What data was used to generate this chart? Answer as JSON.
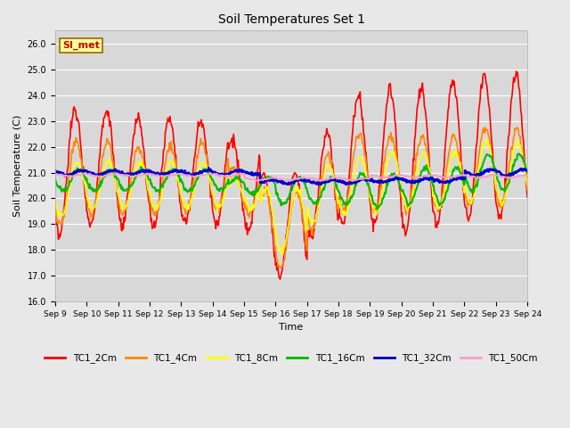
{
  "title": "Soil Temperatures Set 1",
  "xlabel": "Time",
  "ylabel": "Soil Temperature (C)",
  "ylim": [
    16.0,
    26.5
  ],
  "yticks": [
    16.0,
    17.0,
    18.0,
    19.0,
    20.0,
    21.0,
    22.0,
    23.0,
    24.0,
    25.0,
    26.0
  ],
  "fig_bg": "#e8e8e8",
  "plot_bg": "#d8d8d8",
  "grid_color": "#ffffff",
  "annotation_text": "SI_met",
  "annotation_bg": "#ffff99",
  "annotation_border": "#996600",
  "annotation_text_color": "#cc0000",
  "series_colors": {
    "TC1_2Cm": "#ff0000",
    "TC1_4Cm": "#ff8800",
    "TC1_8Cm": "#ffff00",
    "TC1_16Cm": "#00bb00",
    "TC1_32Cm": "#0000cc",
    "TC1_50Cm": "#ff99cc"
  },
  "series_lw": {
    "TC1_2Cm": 1.2,
    "TC1_4Cm": 1.2,
    "TC1_8Cm": 1.2,
    "TC1_16Cm": 1.5,
    "TC1_32Cm": 2.0,
    "TC1_50Cm": 1.2
  },
  "x_tick_labels": [
    "Sep 9",
    "Sep 10",
    "Sep 11",
    "Sep 12",
    "Sep 13",
    "Sep 14",
    "Sep 15",
    "Sep 16",
    "Sep 17",
    "Sep 18",
    "Sep 19",
    "Sep 20",
    "Sep 21",
    "Sep 22",
    "Sep 23",
    "Sep 24"
  ],
  "n_days": 15
}
